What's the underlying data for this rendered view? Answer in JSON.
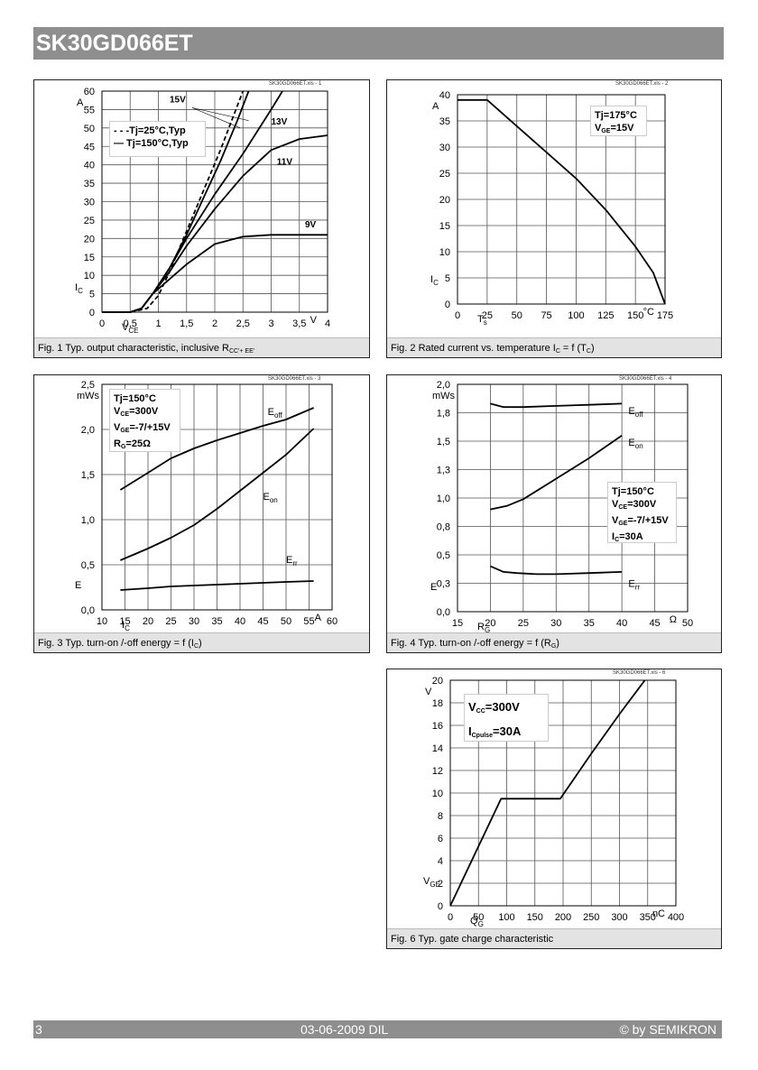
{
  "header": {
    "title": "SK30GD066ET"
  },
  "footer": {
    "page": "3",
    "date": "03-06-2009  DIL",
    "copyright": "© by SEMIKRON"
  },
  "chart_data": [
    {
      "id": "fig1",
      "type": "line",
      "ref": "SK30GD066ET.xls - 1",
      "caption_pre": "Fig. 1 Typ. output characteristic, inclusive R",
      "caption_sub": "CC'+ EE'",
      "xlim": [
        0,
        4
      ],
      "ylim": [
        0,
        60
      ],
      "x_ticks": [
        "0",
        "0,5",
        "1",
        "1,5",
        "2",
        "2,5",
        "3",
        "3,5",
        "4"
      ],
      "x_tick_values": [
        0,
        0.5,
        1,
        1.5,
        2,
        2.5,
        3,
        3.5,
        4
      ],
      "y_ticks": [
        "0",
        "5",
        "10",
        "15",
        "20",
        "25",
        "30",
        "35",
        "40",
        "45",
        "50",
        "55",
        "60"
      ],
      "y_tick_values": [
        0,
        5,
        10,
        15,
        20,
        25,
        30,
        35,
        40,
        45,
        50,
        55,
        60
      ],
      "xunit": "V",
      "yunit": "A",
      "xlabel": "V",
      "xlabel_sub": "CE",
      "ylabel": "I",
      "ylabel_sub": "C",
      "legend": [
        "- - -Tj=25°C,Typ",
        "— Tj=150°C,Typ"
      ],
      "curve_labels": [
        "15V",
        "13V",
        "11V",
        "9V"
      ],
      "series": [
        {
          "name": "Tj=25°C,Typ 15V",
          "dash": true,
          "x": [
            0,
            0.5,
            0.8,
            1.0,
            1.2,
            1.5,
            1.8,
            2.1,
            2.4,
            2.5
          ],
          "y": [
            0,
            0,
            1,
            4.5,
            11,
            22,
            33,
            44,
            56,
            60
          ]
        },
        {
          "name": "Tj=150°C,Typ 15V",
          "dash": false,
          "x": [
            0,
            0.5,
            0.7,
            0.9,
            1.2,
            1.5,
            1.8,
            2.1,
            2.4,
            2.6
          ],
          "y": [
            0,
            0,
            1,
            5,
            12,
            21,
            31,
            41,
            52,
            60
          ]
        },
        {
          "name": "Tj=150°C,Typ 13V",
          "dash": false,
          "x": [
            0,
            0.5,
            0.7,
            0.9,
            1.2,
            1.5,
            2.0,
            2.5,
            3.0,
            3.2
          ],
          "y": [
            0,
            0,
            1,
            5,
            12,
            20,
            32,
            43,
            55,
            60
          ]
        },
        {
          "name": "Tj=150°C,Typ 11V",
          "dash": false,
          "x": [
            0,
            0.5,
            0.7,
            0.9,
            1.2,
            1.5,
            2.0,
            2.5,
            3.0,
            3.5,
            4.0
          ],
          "y": [
            0,
            0,
            1,
            5,
            11,
            18,
            28,
            37,
            44,
            47,
            48
          ]
        },
        {
          "name": "Tj=150°C,Typ 9V",
          "dash": false,
          "x": [
            0,
            0.5,
            0.7,
            0.9,
            1.2,
            1.5,
            2.0,
            2.5,
            3.0,
            3.5,
            4.0
          ],
          "y": [
            0,
            0,
            1,
            5,
            9,
            13,
            18.5,
            20.5,
            21,
            21,
            21
          ]
        }
      ]
    },
    {
      "id": "fig2",
      "type": "line",
      "ref": "SK30GD066ET.xls - 2",
      "caption_pre": "Fig. 2 Rated current vs. temperature I",
      "caption_mid_sub": "C",
      "caption_post": " = f (T",
      "caption_sub": "C",
      "caption_end": ")",
      "xlim": [
        0,
        175
      ],
      "ylim": [
        0,
        40
      ],
      "x_ticks": [
        "0",
        "25",
        "50",
        "75",
        "100",
        "125",
        "150",
        "175"
      ],
      "x_tick_values": [
        0,
        25,
        50,
        75,
        100,
        125,
        150,
        175
      ],
      "y_ticks": [
        "0",
        "5",
        "10",
        "15",
        "20",
        "25",
        "30",
        "35",
        "40"
      ],
      "y_tick_values": [
        0,
        5,
        10,
        15,
        20,
        25,
        30,
        35,
        40
      ],
      "xunit": "°C",
      "yunit": "A",
      "xlabel": "T",
      "xlabel_sub": "s",
      "ylabel": "I",
      "ylabel_sub": "C",
      "legend": [
        "Tj=175°C",
        "V<sub>GE</sub>=15V"
      ],
      "series": [
        {
          "name": "I_C",
          "dash": false,
          "x": [
            0,
            25,
            50,
            75,
            100,
            125,
            150,
            165,
            175
          ],
          "y": [
            39,
            39,
            34,
            29,
            24,
            18,
            11,
            6,
            0
          ]
        }
      ]
    },
    {
      "id": "fig3",
      "type": "line",
      "ref": "SK30GD066ET.xls - 3",
      "caption_pre": "Fig. 3 Typ. turn-on /-off energy = f (I",
      "caption_sub": "C",
      "caption_end": ")",
      "xlim": [
        10,
        60
      ],
      "ylim": [
        0,
        2.5
      ],
      "x_ticks": [
        "10",
        "15",
        "20",
        "25",
        "30",
        "35",
        "40",
        "45",
        "50",
        "55",
        "60"
      ],
      "x_tick_values": [
        10,
        15,
        20,
        25,
        30,
        35,
        40,
        45,
        50,
        55,
        60
      ],
      "y_ticks": [
        "0,0",
        "0,5",
        "1,0",
        "1,5",
        "2,0",
        "2,5"
      ],
      "y_tick_values": [
        0,
        0.5,
        1,
        1.5,
        2,
        2.5
      ],
      "xunit": "A",
      "yunit": "mWs",
      "xlabel": "I",
      "xlabel_sub": "C",
      "ylabel": "E",
      "legend": [
        "Tj=150°C",
        "V<sub>CE</sub>=300V",
        "V<sub>GE</sub>=-7/+15V",
        "R<sub>G</sub>=25Ω"
      ],
      "curve_labels": [
        "E_off",
        "E_on",
        "E_rr"
      ],
      "series": [
        {
          "name": "E_off",
          "dash": false,
          "x": [
            14,
            20,
            25,
            30,
            35,
            40,
            45,
            50,
            56
          ],
          "y": [
            1.33,
            1.52,
            1.68,
            1.79,
            1.88,
            1.96,
            2.04,
            2.11,
            2.24
          ]
        },
        {
          "name": "E_on",
          "dash": false,
          "x": [
            14,
            20,
            25,
            30,
            35,
            40,
            45,
            50,
            56
          ],
          "y": [
            0.55,
            0.68,
            0.8,
            0.94,
            1.12,
            1.32,
            1.52,
            1.72,
            2.01
          ]
        },
        {
          "name": "E_rr",
          "dash": false,
          "x": [
            14,
            20,
            25,
            30,
            35,
            40,
            45,
            50,
            56
          ],
          "y": [
            0.22,
            0.24,
            0.26,
            0.27,
            0.28,
            0.29,
            0.3,
            0.31,
            0.32
          ]
        }
      ]
    },
    {
      "id": "fig4",
      "type": "line",
      "ref": "SK30GD066ET.xls - 4",
      "caption_pre": "Fig. 4 Typ. turn-on /-off energy = f (R",
      "caption_sub": "G",
      "caption_end": ")",
      "xlim": [
        15,
        50
      ],
      "ylim": [
        0,
        2.0
      ],
      "x_ticks": [
        "15",
        "20",
        "25",
        "30",
        "35",
        "40",
        "45",
        "50"
      ],
      "x_tick_values": [
        15,
        20,
        25,
        30,
        35,
        40,
        45,
        50
      ],
      "y_ticks": [
        "0,0",
        "0,3",
        "0,5",
        "0,8",
        "1,0",
        "1,3",
        "1,5",
        "1,8",
        "2,0"
      ],
      "y_tick_values": [
        0,
        0.25,
        0.5,
        0.75,
        1.0,
        1.25,
        1.5,
        1.75,
        2.0
      ],
      "xunit": "Ω",
      "yunit": "mWs",
      "xlabel": "R",
      "xlabel_sub": "G",
      "ylabel": "E",
      "legend": [
        "Tj=150°C",
        "V<sub>CE</sub>=300V",
        "V<sub>GE</sub>=-7/+15V",
        "I<sub>C</sub>=30A"
      ],
      "curve_labels": [
        "E_off",
        "E_on",
        "E_rr"
      ],
      "series": [
        {
          "name": "E_off",
          "dash": false,
          "x": [
            20,
            22,
            25,
            30,
            35,
            40
          ],
          "y": [
            1.83,
            1.8,
            1.8,
            1.81,
            1.82,
            1.83
          ]
        },
        {
          "name": "E_on",
          "dash": false,
          "x": [
            20,
            22.5,
            25,
            30,
            35,
            40
          ],
          "y": [
            0.9,
            0.93,
            0.99,
            1.17,
            1.35,
            1.55
          ]
        },
        {
          "name": "E_rr",
          "dash": false,
          "x": [
            20,
            22,
            24,
            27,
            30,
            35,
            40
          ],
          "y": [
            0.4,
            0.35,
            0.34,
            0.33,
            0.33,
            0.34,
            0.35
          ]
        }
      ]
    },
    {
      "id": "fig6",
      "type": "line",
      "ref": "SK30GD066ET.xls - 6",
      "caption_pre": "Fig. 6 Typ. gate charge characteristic",
      "xlim": [
        0,
        400
      ],
      "ylim": [
        0,
        20
      ],
      "x_ticks": [
        "0",
        "50",
        "100",
        "150",
        "200",
        "250",
        "300",
        "350",
        "400"
      ],
      "x_tick_values": [
        0,
        50,
        100,
        150,
        200,
        250,
        300,
        350,
        400
      ],
      "y_ticks": [
        "0",
        "2",
        "4",
        "6",
        "8",
        "10",
        "12",
        "14",
        "16",
        "18",
        "20"
      ],
      "y_tick_values": [
        0,
        2,
        4,
        6,
        8,
        10,
        12,
        14,
        16,
        18,
        20
      ],
      "xunit": "nC",
      "yunit": "V",
      "xlabel": "Q",
      "xlabel_sub": "G",
      "ylabel": "V",
      "ylabel_sub": "GE",
      "legend": [
        "V<sub>CC</sub>=300V",
        "I<sub>Cpulse</sub>=30A"
      ],
      "series": [
        {
          "name": "V_GE",
          "dash": false,
          "x": [
            0,
            90,
            195,
            250,
            300,
            345
          ],
          "y": [
            0,
            9.5,
            9.5,
            13.5,
            17,
            20
          ]
        }
      ]
    }
  ]
}
